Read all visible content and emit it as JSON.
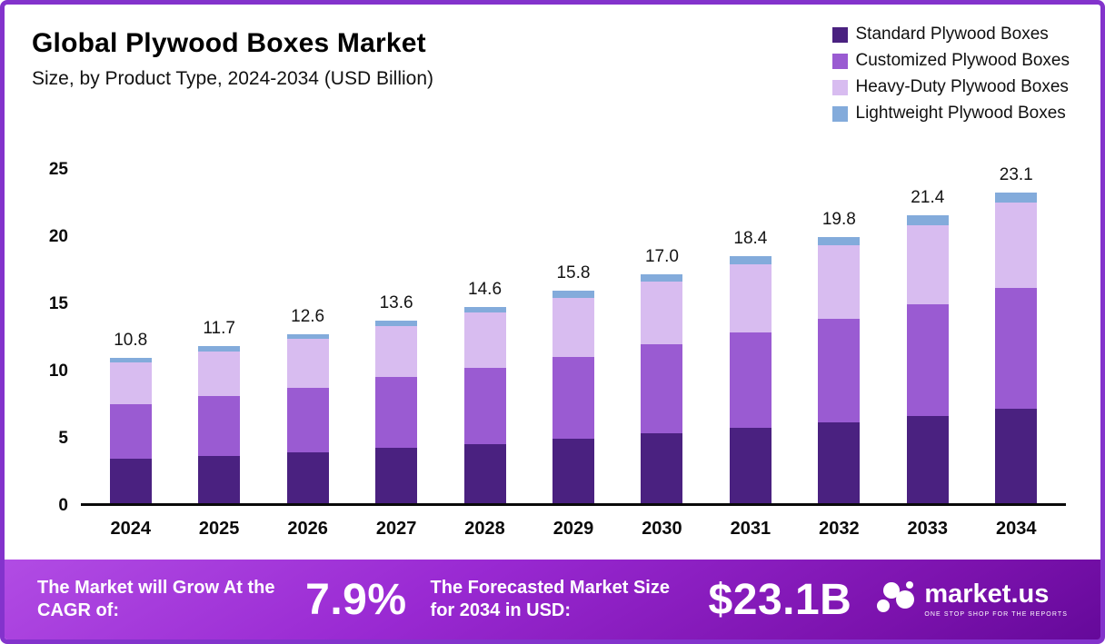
{
  "header": {
    "title": "Global Plywood Boxes Market",
    "subtitle": "Size, by Product Type, 2024-2034 (USD Billion)"
  },
  "legend": [
    {
      "label": "Standard Plywood Boxes",
      "color": "#4a2180"
    },
    {
      "label": "Customized Plywood Boxes",
      "color": "#9a5bd2"
    },
    {
      "label": "Heavy-Duty Plywood Boxes",
      "color": "#d8bcf0"
    },
    {
      "label": "Lightweight Plywood Boxes",
      "color": "#83abdb"
    }
  ],
  "chart_data": {
    "type": "bar",
    "stacked": true,
    "title": "Global Plywood Boxes Market Size, by Product Type, 2024-2034 (USD Billion)",
    "categories": [
      "2024",
      "2025",
      "2026",
      "2027",
      "2028",
      "2029",
      "2030",
      "2031",
      "2032",
      "2033",
      "2034"
    ],
    "series": [
      {
        "name": "Standard Plywood Boxes",
        "color": "#4a2180",
        "values": [
          3.3,
          3.5,
          3.8,
          4.1,
          4.4,
          4.8,
          5.2,
          5.6,
          6.0,
          6.5,
          7.0
        ]
      },
      {
        "name": "Customized Plywood Boxes",
        "color": "#9a5bd2",
        "values": [
          4.1,
          4.5,
          4.8,
          5.3,
          5.7,
          6.1,
          6.6,
          7.1,
          7.7,
          8.3,
          9.0
        ]
      },
      {
        "name": "Heavy-Duty Plywood Boxes",
        "color": "#d8bcf0",
        "values": [
          3.1,
          3.3,
          3.6,
          3.8,
          4.1,
          4.4,
          4.7,
          5.1,
          5.5,
          5.9,
          6.4
        ]
      },
      {
        "name": "Lightweight Plywood Boxes",
        "color": "#83abdb",
        "values": [
          0.3,
          0.4,
          0.4,
          0.4,
          0.4,
          0.5,
          0.5,
          0.6,
          0.6,
          0.7,
          0.7
        ]
      }
    ],
    "totals": [
      "10.8",
      "11.7",
      "12.6",
      "13.6",
      "14.6",
      "15.8",
      "17.0",
      "18.4",
      "19.8",
      "21.4",
      "23.1"
    ],
    "xlabel": "",
    "ylabel": "",
    "ylim": [
      0,
      25
    ],
    "yticks": [
      0,
      5,
      10,
      15,
      20,
      25
    ],
    "grid": false,
    "legend_position": "top-right"
  },
  "footer": {
    "cagr_label": "The Market will Grow At the CAGR of:",
    "cagr_value": "7.9%",
    "forecast_label": "The Forecasted Market Size for 2034 in USD:",
    "forecast_value": "$23.1B",
    "brand": "market.us",
    "brand_tagline": "ONE STOP SHOP FOR THE REPORTS"
  }
}
